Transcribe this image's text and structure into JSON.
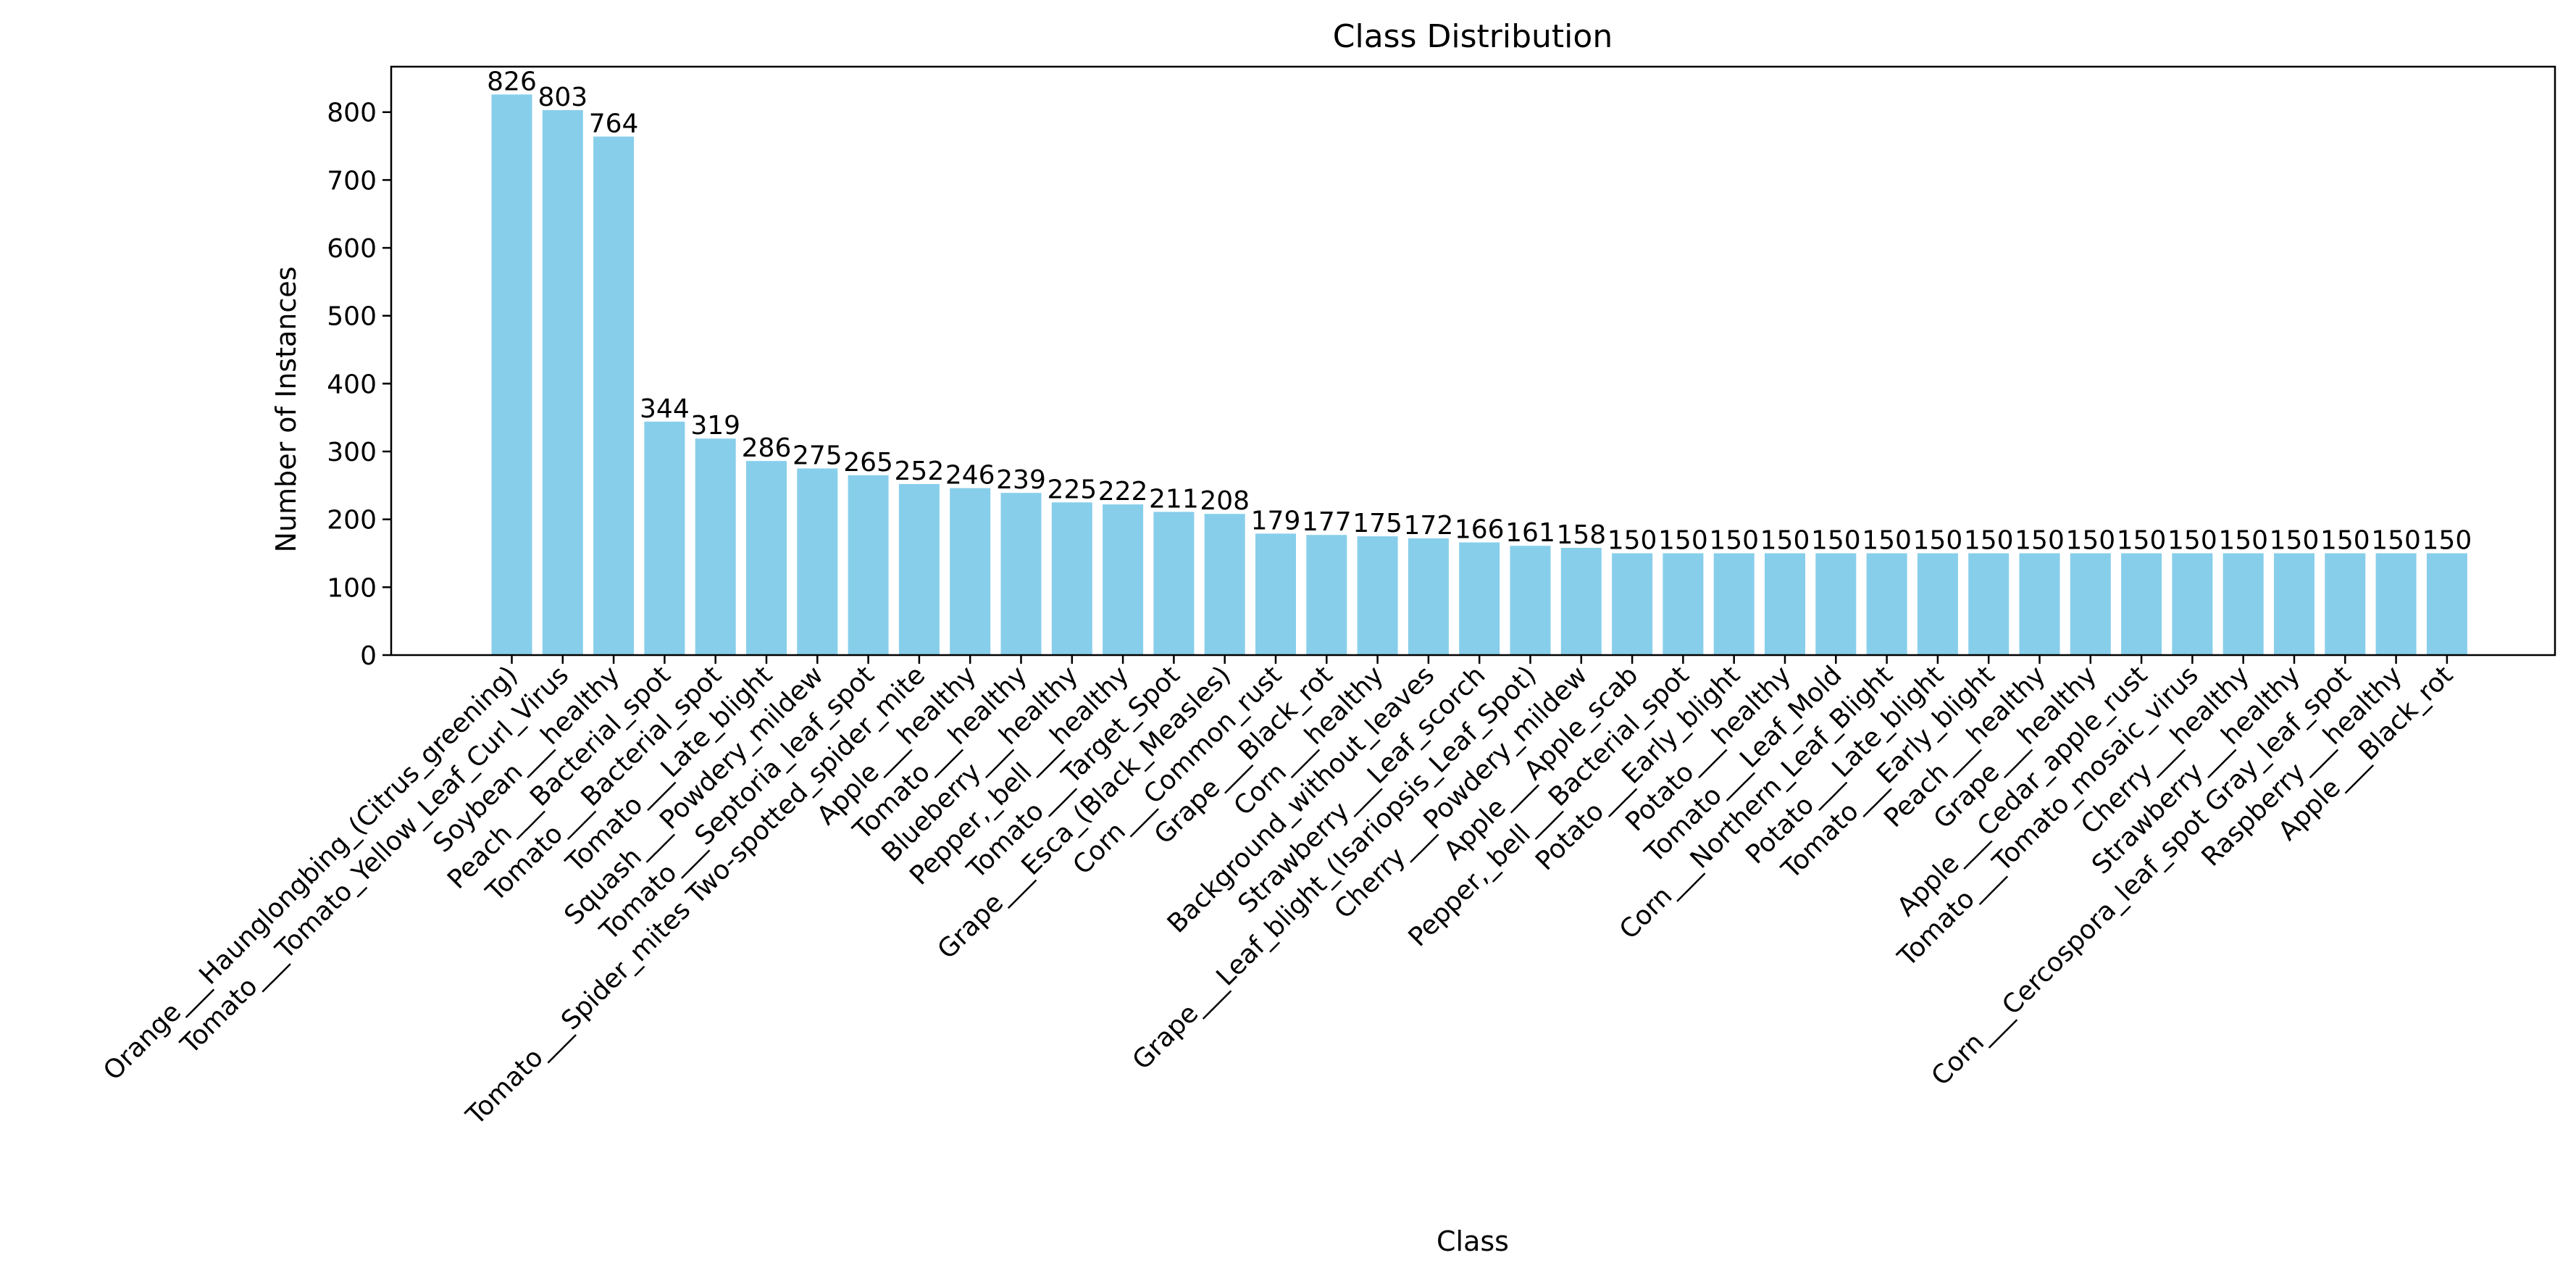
{
  "chart_data": {
    "type": "bar",
    "title": "Class Distribution",
    "xlabel": "Class",
    "ylabel": "Number of Instances",
    "ylim": [
      0,
      867
    ],
    "yticks": [
      0,
      100,
      200,
      300,
      400,
      500,
      600,
      700,
      800
    ],
    "grid": false,
    "bar_color": "#87ceeb",
    "categories": [
      "Orange___Haunglongbing_(Citrus_greening)",
      "Tomato___Tomato_Yellow_Leaf_Curl_Virus",
      "Soybean___healthy",
      "Peach___Bacterial_spot",
      "Tomato___Bacterial_spot",
      "Tomato___Late_blight",
      "Squash___Powdery_mildew",
      "Tomato___Septoria_leaf_spot",
      "Tomato___Spider_mites Two-spotted_spider_mite",
      "Apple___healthy",
      "Tomato___healthy",
      "Blueberry___healthy",
      "Pepper,_bell___healthy",
      "Tomato___Target_Spot",
      "Grape___Esca_(Black_Measles)",
      "Corn___Common_rust",
      "Grape___Black_rot",
      "Corn___healthy",
      "Background_without_leaves",
      "Strawberry___Leaf_scorch",
      "Grape___Leaf_blight_(Isariopsis_Leaf_Spot)",
      "Cherry___Powdery_mildew",
      "Apple___Apple_scab",
      "Pepper,_bell___Bacterial_spot",
      "Potato___Early_blight",
      "Potato___healthy",
      "Tomato___Leaf_Mold",
      "Corn___Northern_Leaf_Blight",
      "Potato___Late_blight",
      "Tomato___Early_blight",
      "Peach___healthy",
      "Grape___healthy",
      "Apple___Cedar_apple_rust",
      "Tomato___Tomato_mosaic_virus",
      "Cherry___healthy",
      "Strawberry___healthy",
      "Corn___Cercospora_leaf_spot Gray_leaf_spot",
      "Raspberry___healthy",
      "Apple___Black_rot"
    ],
    "values": [
      826,
      803,
      764,
      344,
      319,
      286,
      275,
      265,
      252,
      246,
      239,
      225,
      222,
      211,
      208,
      179,
      177,
      175,
      172,
      166,
      161,
      158,
      150,
      150,
      150,
      150,
      150,
      150,
      150,
      150,
      150,
      150,
      150,
      150,
      150,
      150,
      150,
      150,
      150
    ]
  }
}
